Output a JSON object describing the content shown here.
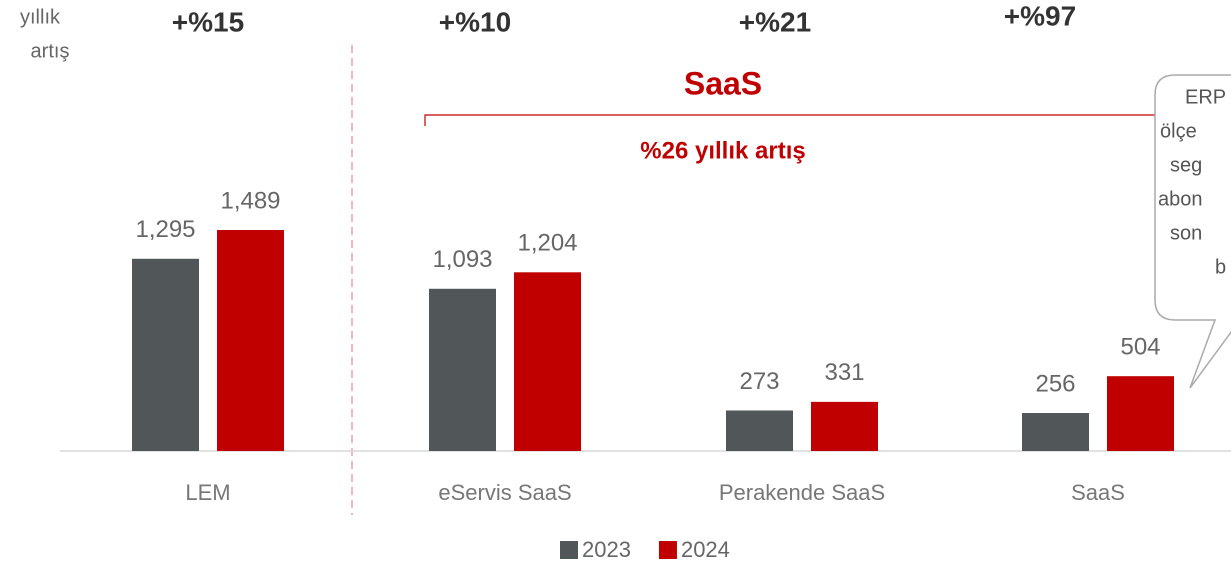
{
  "chart_data": {
    "type": "bar",
    "categories": [
      "LEM",
      "eServis SaaS",
      "Perakende SaaS",
      "SaaS"
    ],
    "series": [
      {
        "name": "2023",
        "color": "#515759",
        "values": [
          1295,
          1093,
          273,
          256
        ],
        "value_labels": [
          "1,295",
          "1,093",
          "273",
          "256"
        ]
      },
      {
        "name": "2024",
        "color": "#c00000",
        "values": [
          1489,
          1204,
          331,
          504
        ],
        "value_labels": [
          "1,489",
          "1,204",
          "331",
          "504"
        ]
      }
    ],
    "growth_caption": [
      "yıllık",
      "artış"
    ],
    "growth": [
      "+%15",
      "+%10",
      "+%21",
      "+%97"
    ],
    "group_title": "SaaS",
    "group_growth": "%26 yıllık artış",
    "callout": [
      "ERP",
      "ölçe",
      "seg",
      "abon",
      "son",
      "b"
    ]
  }
}
